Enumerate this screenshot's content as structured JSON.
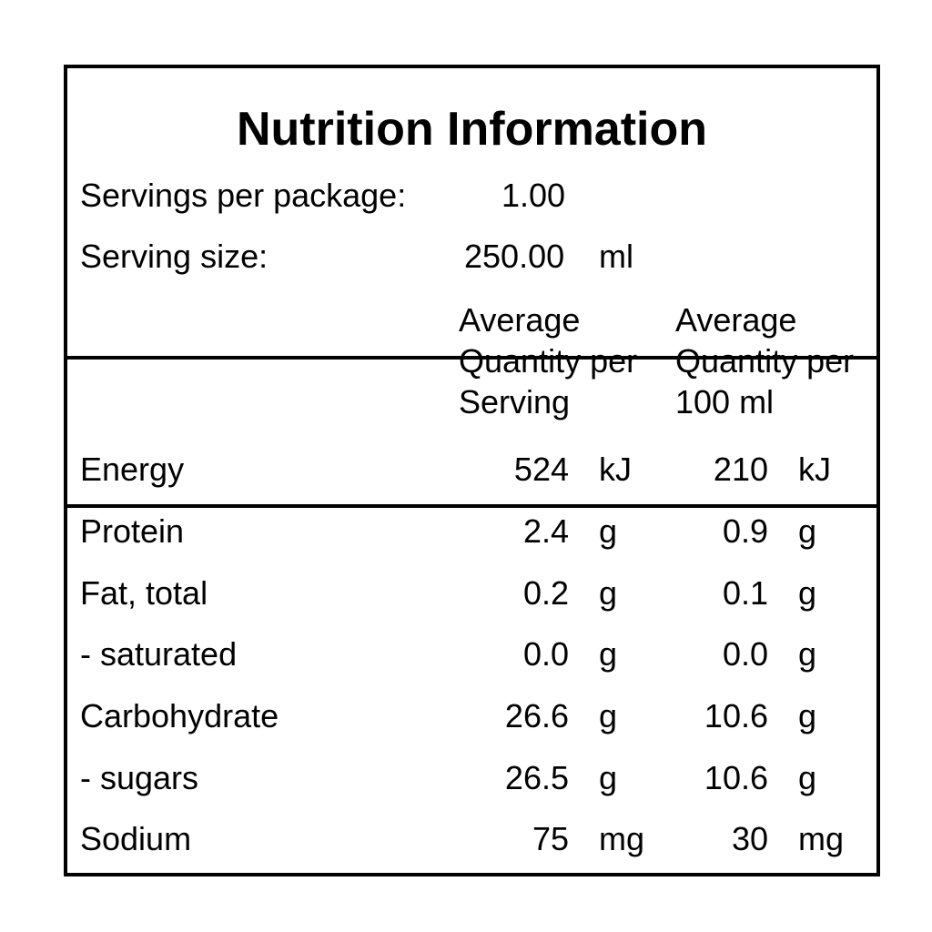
{
  "panel": {
    "title": "Nutrition Information",
    "servings_per_package": {
      "label": "Servings per package:",
      "value": "1.00"
    },
    "serving_size": {
      "label": "Serving size:",
      "value": "250.00",
      "unit": "ml"
    },
    "headers": {
      "per_serving": "Average\nQuantity per\nServing",
      "per_100": "Average\nQuantity per\n100 ml"
    },
    "rows": [
      {
        "name": "Energy",
        "per_serving": "524",
        "serving_unit": "kJ",
        "per_100": "210",
        "per_100_unit": "kJ"
      },
      {
        "name": "Protein",
        "per_serving": "2.4",
        "serving_unit": "g",
        "per_100": "0.9",
        "per_100_unit": "g"
      },
      {
        "name": "Fat, total",
        "per_serving": "0.2",
        "serving_unit": "g",
        "per_100": "0.1",
        "per_100_unit": "g"
      },
      {
        "name": "- saturated",
        "per_serving": "0.0",
        "serving_unit": "g",
        "per_100": "0.0",
        "per_100_unit": "g"
      },
      {
        "name": "Carbohydrate",
        "per_serving": "26.6",
        "serving_unit": "g",
        "per_100": "10.6",
        "per_100_unit": "g"
      },
      {
        "name": "- sugars",
        "per_serving": "26.5",
        "serving_unit": "g",
        "per_100": "10.6",
        "per_100_unit": "g"
      },
      {
        "name": "Sodium",
        "per_serving": "75",
        "serving_unit": "mg",
        "per_100": "30",
        "per_100_unit": "mg"
      }
    ]
  }
}
